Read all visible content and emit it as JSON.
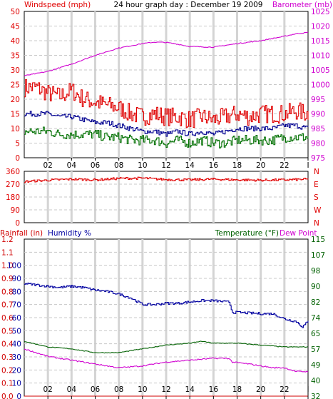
{
  "title": "24 hour graph day : December 19 2009",
  "x_ticks": [
    "02",
    "04",
    "06",
    "08",
    "10",
    "12",
    "14",
    "16",
    "18",
    "20",
    "22",
    "I"
  ],
  "colors": {
    "wind": "#e00000",
    "gust": "#000090",
    "avg": "#007000",
    "baro": "#d000d0",
    "dir": "#e00000",
    "rain": "#d00000",
    "hum": "#0000a0",
    "temp": "#006000",
    "dew": "#d000d0"
  },
  "chart_data": [
    {
      "type": "line",
      "title": "24 hour graph day : December 19 2009",
      "left_axis": {
        "label": "Windspeed (mph)",
        "range": [
          0,
          50
        ],
        "ticks": [
          "0",
          "5",
          "10",
          "15",
          "20",
          "25",
          "30",
          "35",
          "40",
          "45",
          "50"
        ]
      },
      "right_axis": {
        "label": "Barometer (mb)",
        "range": [
          975,
          1025
        ],
        "ticks": [
          "975",
          "980",
          "985",
          "990",
          "995",
          "1000",
          "1005",
          "1010",
          "1015",
          "1020",
          "1025"
        ]
      },
      "x_range_hours": [
        0,
        24
      ],
      "series": [
        {
          "key": "gust",
          "color_key": "wind",
          "axis": "left",
          "noise": 3.2,
          "points": [
            [
              0,
              24
            ],
            [
              1,
              24
            ],
            [
              2,
              22
            ],
            [
              3,
              21
            ],
            [
              4,
              23
            ],
            [
              5,
              20
            ],
            [
              6,
              19
            ],
            [
              7,
              18
            ],
            [
              8,
              17
            ],
            [
              9,
              15
            ],
            [
              10,
              14
            ],
            [
              11,
              15
            ],
            [
              12,
              14
            ],
            [
              13,
              14
            ],
            [
              14,
              13
            ],
            [
              15,
              14
            ],
            [
              16,
              13
            ],
            [
              17,
              14
            ],
            [
              18,
              15
            ],
            [
              19,
              14
            ],
            [
              20,
              15
            ],
            [
              21,
              15
            ],
            [
              22,
              15
            ],
            [
              23,
              16
            ],
            [
              24,
              15
            ]
          ]
        },
        {
          "key": "avg",
          "color_key": "gust",
          "axis": "left",
          "noise": 0.9,
          "points": [
            [
              0,
              15
            ],
            [
              1,
              15
            ],
            [
              2,
              15
            ],
            [
              3,
              14
            ],
            [
              4,
              14
            ],
            [
              5,
              13
            ],
            [
              6,
              12
            ],
            [
              7,
              12
            ],
            [
              8,
              11
            ],
            [
              9,
              10
            ],
            [
              10,
              9
            ],
            [
              11,
              9
            ],
            [
              12,
              8
            ],
            [
              13,
              9
            ],
            [
              14,
              8
            ],
            [
              15,
              9
            ],
            [
              16,
              8
            ],
            [
              17,
              9
            ],
            [
              18,
              10
            ],
            [
              19,
              10
            ],
            [
              20,
              10
            ],
            [
              21,
              10
            ],
            [
              22,
              11
            ],
            [
              23,
              11
            ],
            [
              24,
              10
            ]
          ]
        },
        {
          "key": "low",
          "color_key": "avg",
          "axis": "left",
          "noise": 1.7,
          "points": [
            [
              0,
              9
            ],
            [
              1,
              9
            ],
            [
              2,
              9
            ],
            [
              3,
              8
            ],
            [
              4,
              8
            ],
            [
              5,
              8
            ],
            [
              6,
              8
            ],
            [
              7,
              7
            ],
            [
              8,
              7
            ],
            [
              9,
              6
            ],
            [
              10,
              6
            ],
            [
              11,
              6
            ],
            [
              12,
              5
            ],
            [
              13,
              6
            ],
            [
              14,
              5
            ],
            [
              15,
              6
            ],
            [
              16,
              5
            ],
            [
              17,
              5
            ],
            [
              18,
              6
            ],
            [
              19,
              6
            ],
            [
              20,
              6
            ],
            [
              21,
              6
            ],
            [
              22,
              7
            ],
            [
              23,
              7
            ],
            [
              24,
              7
            ]
          ]
        },
        {
          "key": "baro",
          "color_key": "baro",
          "axis": "right",
          "noise": 0.15,
          "points": [
            [
              0,
              1003
            ],
            [
              2,
              1004.5
            ],
            [
              4,
              1007
            ],
            [
              6,
              1010
            ],
            [
              8,
              1012.5
            ],
            [
              10,
              1014
            ],
            [
              11,
              1014.5
            ],
            [
              12,
              1014.4
            ],
            [
              13,
              1013.8
            ],
            [
              14,
              1013
            ],
            [
              16,
              1012.8
            ],
            [
              18,
              1014
            ],
            [
              20,
              1015
            ],
            [
              22,
              1016.5
            ],
            [
              23,
              1017.4
            ],
            [
              24,
              1017.8
            ]
          ]
        }
      ]
    },
    {
      "type": "line",
      "left_axis": {
        "label": "",
        "range": [
          0,
          360
        ],
        "ticks": [
          "0",
          "90",
          "180",
          "270",
          "360"
        ]
      },
      "right_axis": {
        "label": "",
        "ticks": [
          "N",
          "E",
          "S",
          "W",
          "N"
        ]
      },
      "x_range_hours": [
        0,
        24
      ],
      "series": [
        {
          "key": "direction",
          "color_key": "dir",
          "axis": "left",
          "noise": 8,
          "points": [
            [
              0,
              288
            ],
            [
              2,
              298
            ],
            [
              4,
              305
            ],
            [
              6,
              300
            ],
            [
              8,
              310
            ],
            [
              10,
              312
            ],
            [
              12,
              302
            ],
            [
              14,
              300
            ],
            [
              16,
              305
            ],
            [
              18,
              300
            ],
            [
              20,
              298
            ],
            [
              22,
              300
            ],
            [
              24,
              305
            ]
          ]
        }
      ]
    },
    {
      "type": "line",
      "labels": {
        "rain": "Rainfall (in)",
        "humidity": "Humidity %",
        "temperature": "Temperature (°F)",
        "dewpoint": "Dew Point"
      },
      "left_axis_rain": {
        "range": [
          0,
          1.2
        ],
        "ticks": [
          "0.0",
          "0.1",
          "0.2",
          "0.3",
          "0.4",
          "0.5",
          "0.6",
          "0.7",
          "0.8",
          "0.9",
          "1.0",
          "1.1",
          "1.2"
        ]
      },
      "left_axis_humidity": {
        "range": [
          0,
          120
        ],
        "ticks": [
          "0",
          "10",
          "20",
          "30",
          "40",
          "50",
          "60",
          "70",
          "80",
          "90",
          "100"
        ]
      },
      "right_axis_temp": {
        "range": [
          32,
          115
        ],
        "ticks": [
          "32",
          "40",
          "49",
          "57",
          "65",
          "74",
          "82",
          "90",
          "98",
          "107",
          "115"
        ]
      },
      "x_range_hours": [
        0,
        24
      ],
      "series": [
        {
          "key": "humidity",
          "color_key": "hum",
          "axis": "humidity",
          "noise": 0.9,
          "points": [
            [
              0,
              86
            ],
            [
              2,
              84
            ],
            [
              3,
              83
            ],
            [
              4,
              84
            ],
            [
              5,
              83
            ],
            [
              6,
              81
            ],
            [
              7,
              80
            ],
            [
              8,
              78
            ],
            [
              9,
              75
            ],
            [
              10,
              70
            ],
            [
              11,
              70
            ],
            [
              12,
              71
            ],
            [
              13,
              71
            ],
            [
              14,
              72
            ],
            [
              15,
              73
            ],
            [
              16,
              73
            ],
            [
              17,
              72
            ],
            [
              17.3,
              72
            ],
            [
              17.6,
              64
            ],
            [
              18,
              64
            ],
            [
              20,
              63
            ],
            [
              21,
              63
            ],
            [
              22,
              59
            ],
            [
              23,
              57
            ],
            [
              23.5,
              53
            ],
            [
              24,
              57
            ]
          ]
        },
        {
          "key": "temperature",
          "color_key": "temp",
          "axis": "temp",
          "noise": 0.2,
          "points": [
            [
              0,
              61
            ],
            [
              2,
              58
            ],
            [
              4,
              57
            ],
            [
              6,
              55
            ],
            [
              8,
              55
            ],
            [
              10,
              57
            ],
            [
              12,
              59
            ],
            [
              14,
              60
            ],
            [
              15,
              61
            ],
            [
              16,
              60
            ],
            [
              18,
              60
            ],
            [
              20,
              59
            ],
            [
              22,
              58
            ],
            [
              24,
              58
            ]
          ]
        },
        {
          "key": "dewpoint",
          "color_key": "dew",
          "axis": "temp",
          "noise": 0.35,
          "points": [
            [
              0,
              57
            ],
            [
              2,
              53
            ],
            [
              4,
              51
            ],
            [
              6,
              49
            ],
            [
              8,
              47
            ],
            [
              10,
              48
            ],
            [
              12,
              50
            ],
            [
              14,
              51
            ],
            [
              16,
              52
            ],
            [
              17.3,
              52
            ],
            [
              17.6,
              50
            ],
            [
              19,
              49
            ],
            [
              21,
              47
            ],
            [
              22,
              47
            ],
            [
              23,
              45
            ],
            [
              24,
              45
            ]
          ]
        },
        {
          "key": "rain",
          "color_key": "rain",
          "axis": "rain",
          "noise": 0,
          "points": [
            [
              0,
              0
            ],
            [
              24,
              0
            ]
          ]
        }
      ]
    }
  ]
}
